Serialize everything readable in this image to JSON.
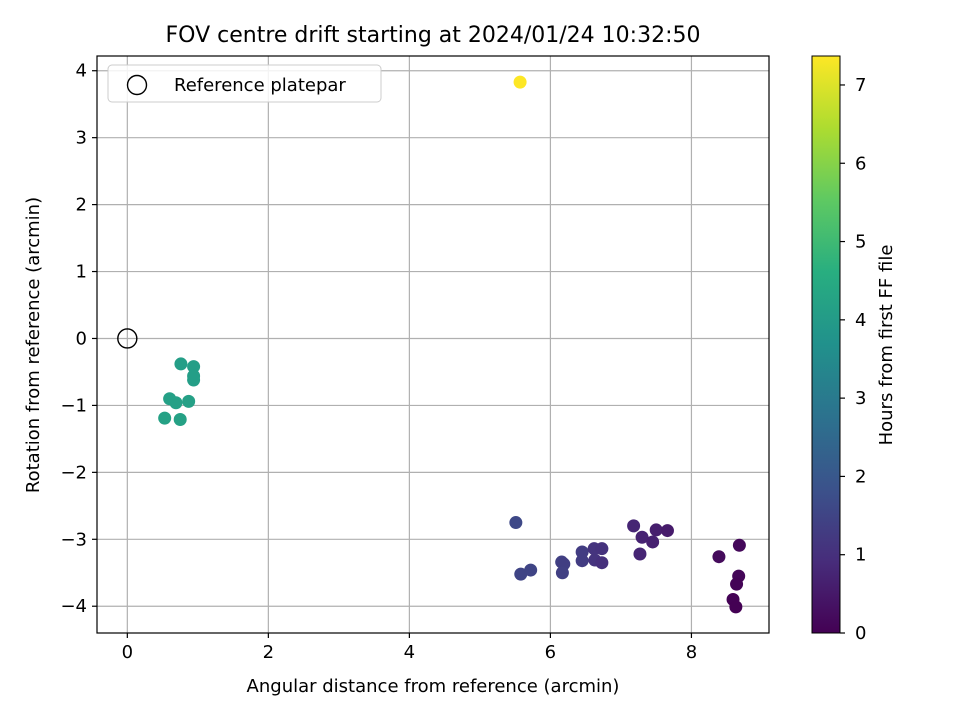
{
  "chart_data": {
    "type": "scatter",
    "title": "FOV centre drift starting at 2024/01/24 10:32:50",
    "xlabel": "Angular distance from reference (arcmin)",
    "ylabel": "Rotation from reference (arcmin)",
    "xlim": [
      -0.43,
      9.1
    ],
    "ylim": [
      -4.4,
      4.22
    ],
    "xticks": [
      0,
      2,
      4,
      6,
      8
    ],
    "yticks": [
      -4,
      -3,
      -2,
      -1,
      0,
      1,
      2,
      3,
      4
    ],
    "grid": true,
    "legend": {
      "placement": "top-left",
      "entries": [
        "Reference platepar"
      ]
    },
    "reference_point": {
      "x": 0,
      "y": 0
    },
    "colorbar": {
      "label": "Hours from first FF file",
      "min": 0,
      "max": 7.37,
      "ticks": [
        0,
        1,
        2,
        3,
        4,
        5,
        6,
        7
      ],
      "colormap": "viridis"
    },
    "points": [
      {
        "x": 5.57,
        "y": 3.83,
        "h": 7.37
      },
      {
        "x": 0.76,
        "y": -0.38,
        "h": 4.1
      },
      {
        "x": 0.94,
        "y": -0.42,
        "h": 4.1
      },
      {
        "x": 0.94,
        "y": -0.56,
        "h": 4.1
      },
      {
        "x": 0.94,
        "y": -0.62,
        "h": 4.1
      },
      {
        "x": 0.6,
        "y": -0.9,
        "h": 4.15
      },
      {
        "x": 0.69,
        "y": -0.96,
        "h": 4.15
      },
      {
        "x": 0.87,
        "y": -0.94,
        "h": 4.15
      },
      {
        "x": 0.53,
        "y": -1.19,
        "h": 4.2
      },
      {
        "x": 0.75,
        "y": -1.21,
        "h": 4.2
      },
      {
        "x": 5.51,
        "y": -2.75,
        "h": 1.6
      },
      {
        "x": 5.58,
        "y": -3.52,
        "h": 1.5
      },
      {
        "x": 5.72,
        "y": -3.46,
        "h": 1.5
      },
      {
        "x": 6.16,
        "y": -3.34,
        "h": 1.4
      },
      {
        "x": 6.19,
        "y": -3.37,
        "h": 1.35
      },
      {
        "x": 6.17,
        "y": -3.5,
        "h": 1.4
      },
      {
        "x": 6.45,
        "y": -3.19,
        "h": 1.3
      },
      {
        "x": 6.45,
        "y": -3.32,
        "h": 1.3
      },
      {
        "x": 6.62,
        "y": -3.14,
        "h": 1.1
      },
      {
        "x": 6.63,
        "y": -3.31,
        "h": 1.1
      },
      {
        "x": 6.73,
        "y": -3.14,
        "h": 1.05
      },
      {
        "x": 6.73,
        "y": -3.35,
        "h": 1.0
      },
      {
        "x": 7.18,
        "y": -2.8,
        "h": 0.75
      },
      {
        "x": 7.3,
        "y": -2.97,
        "h": 0.7
      },
      {
        "x": 7.27,
        "y": -3.22,
        "h": 0.75
      },
      {
        "x": 7.45,
        "y": -3.04,
        "h": 0.65
      },
      {
        "x": 7.5,
        "y": -2.86,
        "h": 0.6
      },
      {
        "x": 7.66,
        "y": -2.87,
        "h": 0.55
      },
      {
        "x": 8.39,
        "y": -3.26,
        "h": 0.2
      },
      {
        "x": 8.68,
        "y": -3.09,
        "h": 0.15
      },
      {
        "x": 8.67,
        "y": -3.55,
        "h": 0.1
      },
      {
        "x": 8.64,
        "y": -3.67,
        "h": 0.05
      },
      {
        "x": 8.59,
        "y": -3.9,
        "h": 0.02
      },
      {
        "x": 8.63,
        "y": -4.01,
        "h": 0.0
      }
    ]
  }
}
